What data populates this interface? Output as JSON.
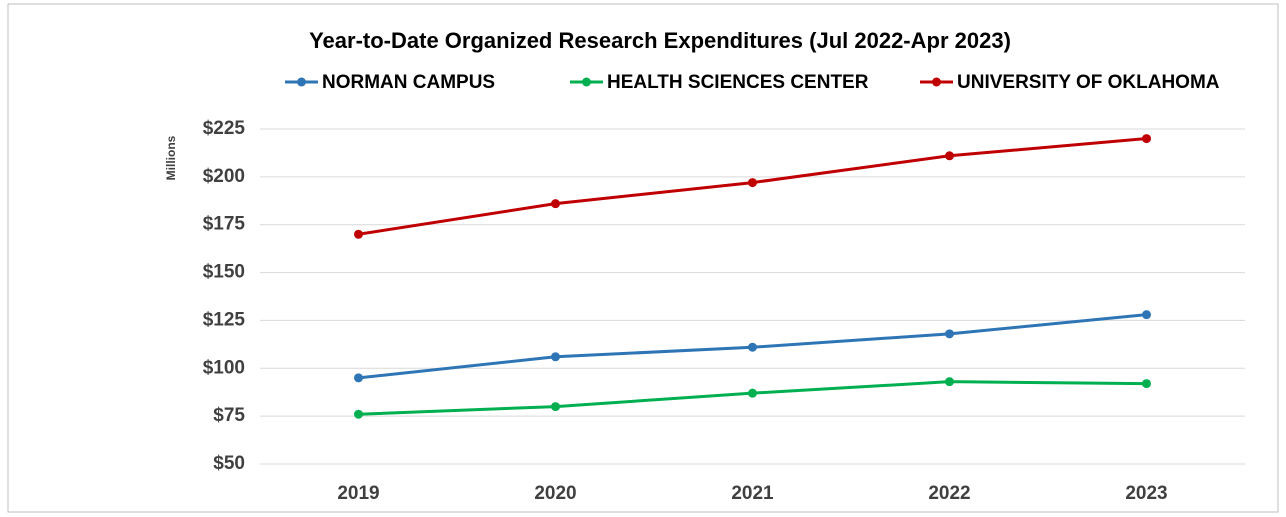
{
  "chart_data": {
    "type": "line",
    "title": "Year-to-Date Organized Research Expenditures (Jul 2022-Apr 2023)",
    "y_axis_label": "Millions",
    "categories": [
      "2019",
      "2020",
      "2021",
      "2022",
      "2023"
    ],
    "series": [
      {
        "name": "NORMAN CAMPUS",
        "color": "#2e75b6",
        "values": [
          95,
          106,
          111,
          118,
          128
        ]
      },
      {
        "name": "HEALTH SCIENCES CENTER",
        "color": "#00b050",
        "values": [
          76,
          80,
          87,
          93,
          92
        ]
      },
      {
        "name": "UNIVERSITY OF OKLAHOMA",
        "color": "#c00000",
        "values": [
          170,
          186,
          197,
          211,
          220
        ]
      }
    ],
    "ylim": [
      50,
      225
    ],
    "yticks": [
      {
        "value": 50,
        "label": "$50"
      },
      {
        "value": 75,
        "label": "$75"
      },
      {
        "value": 100,
        "label": "$100"
      },
      {
        "value": 125,
        "label": "$125"
      },
      {
        "value": 150,
        "label": "$150"
      },
      {
        "value": 175,
        "label": "$175"
      },
      {
        "value": 200,
        "label": "$200"
      },
      {
        "value": 225,
        "label": "$225"
      }
    ],
    "grid": true,
    "legend": "top"
  }
}
